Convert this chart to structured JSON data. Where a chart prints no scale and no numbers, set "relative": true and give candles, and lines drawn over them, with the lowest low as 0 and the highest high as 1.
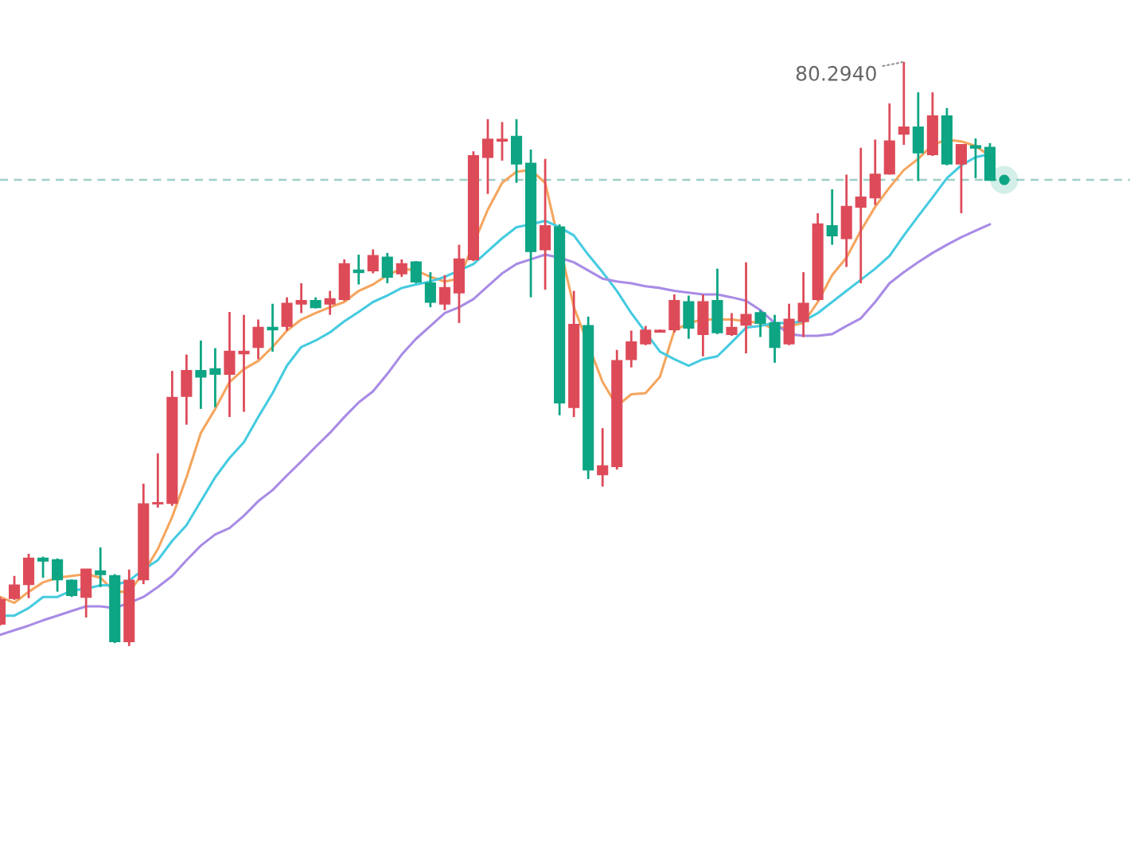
{
  "chart_data": {
    "type": "candlestick",
    "relative": true,
    "categories": [
      null,
      null,
      null,
      null,
      null,
      null,
      null,
      null,
      null,
      null,
      null,
      null,
      null,
      null,
      null,
      null,
      null,
      null,
      null,
      null,
      null,
      null,
      null,
      null,
      null,
      null,
      null,
      null,
      null,
      null,
      null,
      null,
      null,
      null,
      null,
      null,
      null,
      null,
      null,
      null,
      null,
      null,
      null,
      null,
      null,
      null,
      null,
      null,
      null,
      null,
      null,
      null,
      null,
      null,
      null,
      null,
      null,
      null,
      null,
      null,
      null,
      null,
      null,
      null,
      null,
      null,
      null,
      null,
      null,
      null
    ],
    "ohlc": [
      [
        0.038,
        0.084,
        0.035,
        0.079
      ],
      [
        0.082,
        0.12,
        0.079,
        0.104
      ],
      [
        0.106,
        0.158,
        0.082,
        0.15
      ],
      [
        0.15,
        0.153,
        0.117,
        0.146
      ],
      [
        0.147,
        0.15,
        0.093,
        0.114
      ],
      [
        0.112,
        0.114,
        0.084,
        0.087
      ],
      [
        0.084,
        0.131,
        0.049,
        0.131
      ],
      [
        0.128,
        0.169,
        0.101,
        0.123
      ],
      [
        0.12,
        0.123,
        0.005,
        0.008
      ],
      [
        0.008,
        0.131,
        0.0,
        0.112
      ],
      [
        0.114,
        0.278,
        0.106,
        0.243
      ],
      [
        0.244,
        0.33,
        0.237,
        0.245
      ],
      [
        0.245,
        0.471,
        0.24,
        0.425
      ],
      [
        0.428,
        0.499,
        0.379,
        0.471
      ],
      [
        0.471,
        0.523,
        0.406,
        0.461
      ],
      [
        0.474,
        0.51,
        0.409,
        0.466
      ],
      [
        0.466,
        0.572,
        0.392,
        0.504
      ],
      [
        0.501,
        0.567,
        0.401,
        0.504
      ],
      [
        0.512,
        0.559,
        0.491,
        0.545
      ],
      [
        0.545,
        0.586,
        0.504,
        0.542
      ],
      [
        0.548,
        0.597,
        0.54,
        0.586
      ],
      [
        0.586,
        0.621,
        0.57,
        0.591
      ],
      [
        0.591,
        0.597,
        0.578,
        0.58
      ],
      [
        0.586,
        0.608,
        0.567,
        0.594
      ],
      [
        0.594,
        0.662,
        0.591,
        0.654
      ],
      [
        0.643,
        0.67,
        0.619,
        0.64
      ],
      [
        0.643,
        0.679,
        0.638,
        0.668
      ],
      [
        0.665,
        0.673,
        0.621,
        0.632
      ],
      [
        0.638,
        0.662,
        0.632,
        0.654
      ],
      [
        0.657,
        0.659,
        0.621,
        0.624
      ],
      [
        0.621,
        0.64,
        0.58,
        0.589
      ],
      [
        0.586,
        0.635,
        0.575,
        0.613
      ],
      [
        0.605,
        0.687,
        0.553,
        0.662
      ],
      [
        0.662,
        0.847,
        0.659,
        0.839
      ],
      [
        0.837,
        0.902,
        0.774,
        0.867
      ],
      [
        0.865,
        0.897,
        0.831,
        0.867
      ],
      [
        0.872,
        0.902,
        0.793,
        0.826
      ],
      [
        0.826,
        0.85,
        0.597,
        0.676
      ],
      [
        0.679,
        0.834,
        0.61,
        0.719
      ],
      [
        0.717,
        0.722,
        0.395,
        0.417
      ],
      [
        0.409,
        0.608,
        0.392,
        0.55
      ],
      [
        0.548,
        0.564,
        0.286,
        0.302
      ],
      [
        0.294,
        0.373,
        0.273,
        0.308
      ],
      [
        0.308,
        0.507,
        0.302,
        0.488
      ],
      [
        0.491,
        0.54,
        0.477,
        0.52
      ],
      [
        0.518,
        0.548,
        0.515,
        0.54
      ],
      [
        0.538,
        0.542,
        0.537,
        0.54
      ],
      [
        0.542,
        0.602,
        0.537,
        0.591
      ],
      [
        0.589,
        0.6,
        0.526,
        0.545
      ],
      [
        0.534,
        0.602,
        0.496,
        0.589
      ],
      [
        0.591,
        0.646,
        0.534,
        0.537
      ],
      [
        0.534,
        0.57,
        0.531,
        0.545
      ],
      [
        0.55,
        0.657,
        0.501,
        0.567
      ],
      [
        0.57,
        0.575,
        0.529,
        0.553
      ],
      [
        0.553,
        0.567,
        0.485,
        0.512
      ],
      [
        0.518,
        0.586,
        0.515,
        0.559
      ],
      [
        0.556,
        0.64,
        0.529,
        0.586
      ],
      [
        0.594,
        0.741,
        0.591,
        0.722
      ],
      [
        0.719,
        0.782,
        0.687,
        0.703
      ],
      [
        0.698,
        0.807,
        0.649,
        0.752
      ],
      [
        0.752,
        0.853,
        0.621,
        0.768
      ],
      [
        0.768,
        0.867,
        0.755,
        0.807
      ],
      [
        0.809,
        0.929,
        0.807,
        0.864
      ],
      [
        0.877,
        1.0,
        0.858,
        0.888
      ],
      [
        0.888,
        0.948,
        0.796,
        0.845
      ],
      [
        0.842,
        0.948,
        0.839,
        0.907
      ],
      [
        0.907,
        0.921,
        0.823,
        0.826
      ],
      [
        0.826,
        0.858,
        0.741,
        0.858
      ],
      [
        0.856,
        0.869,
        0.801,
        0.853
      ],
      [
        0.853,
        0.861,
        0.798,
        0.798
      ]
    ],
    "colors": [
      "#dd4b59",
      "#dd4b59",
      "#dd4b59",
      "#0ea584",
      "#0ea584",
      "#0ea584",
      "#dd4b59",
      "#0ea584",
      "#0ea584",
      "#dd4b59",
      "#dd4b59",
      "#dd4b59",
      "#dd4b59",
      "#dd4b59",
      "#0ea584",
      "#0ea584",
      "#dd4b59",
      "#dd4b59",
      "#dd4b59",
      "#0ea584",
      "#dd4b59",
      "#dd4b59",
      "#0ea584",
      "#dd4b59",
      "#dd4b59",
      "#0ea584",
      "#dd4b59",
      "#0ea584",
      "#dd4b59",
      "#0ea584",
      "#0ea584",
      "#dd4b59",
      "#dd4b59",
      "#dd4b59",
      "#dd4b59",
      "#dd4b59",
      "#0ea584",
      "#0ea584",
      "#dd4b59",
      "#0ea584",
      "#dd4b59",
      "#0ea584",
      "#dd4b59",
      "#dd4b59",
      "#dd4b59",
      "#dd4b59",
      "#dd4b59",
      "#dd4b59",
      "#0ea584",
      "#dd4b59",
      "#0ea584",
      "#dd4b59",
      "#dd4b59",
      "#0ea584",
      "#0ea584",
      "#dd4b59",
      "#dd4b59",
      "#dd4b59",
      "#0ea584",
      "#dd4b59",
      "#dd4b59",
      "#dd4b59",
      "#dd4b59",
      "#dd4b59",
      "#0ea584",
      "#dd4b59",
      "#0ea584",
      "#dd4b59",
      "#0ea584",
      "#0ea584"
    ],
    "series": [
      {
        "type": "line",
        "color": "#f5a55e",
        "values": [
          0.084,
          0.074,
          0.093,
          0.109,
          0.117,
          0.12,
          0.123,
          0.117,
          0.093,
          0.093,
          0.125,
          0.166,
          0.221,
          0.289,
          0.365,
          0.406,
          0.452,
          0.474,
          0.488,
          0.512,
          0.54,
          0.559,
          0.57,
          0.58,
          0.589,
          0.608,
          0.619,
          0.635,
          0.646,
          0.643,
          0.632,
          0.624,
          0.629,
          null,
          0.747,
          0.793,
          0.812,
          0.815,
          0.793,
          null,
          0.58,
          null,
          0.452,
          0.411,
          0.431,
          0.433,
          0.461,
          0.54,
          0.553,
          0.559,
          0.559,
          0.559,
          0.556,
          0.553,
          0.542,
          0.548,
          0.553,
          0.589,
          0.635,
          0.665,
          0.711,
          0.752,
          0.785,
          0.815,
          0.834,
          0.858,
          0.867,
          0.864,
          0.856,
          0.839
        ]
      },
      {
        "type": "line",
        "color": "#45cbe0",
        "values": [
          0.052,
          0.052,
          0.065,
          0.084,
          0.084,
          0.095,
          0.098,
          0.104,
          0.104,
          0.112,
          0.131,
          0.147,
          0.18,
          0.207,
          0.248,
          0.289,
          0.322,
          0.349,
          0.392,
          0.433,
          0.48,
          0.512,
          0.523,
          0.537,
          0.556,
          0.572,
          0.589,
          0.6,
          0.613,
          0.619,
          0.624,
          0.632,
          0.643,
          0.654,
          0.676,
          0.698,
          0.717,
          0.722,
          0.728,
          0.717,
          0.703,
          0.67,
          0.64,
          0.608,
          0.57,
          0.537,
          0.504,
          0.491,
          0.48,
          0.491,
          0.496,
          0.52,
          0.545,
          0.548,
          0.553,
          0.553,
          0.556,
          0.57,
          0.589,
          0.608,
          0.627,
          0.646,
          0.668,
          0.703,
          0.736,
          0.768,
          0.801,
          0.823,
          0.837,
          0.842
        ]
      },
      {
        "type": "line",
        "color": "#a88be6",
        "values": [
          0.019,
          0.027,
          0.035,
          0.044,
          0.052,
          0.06,
          0.068,
          0.068,
          0.065,
          0.074,
          0.084,
          0.101,
          0.12,
          0.147,
          0.172,
          0.191,
          0.202,
          0.223,
          0.248,
          0.267,
          0.292,
          0.316,
          0.341,
          0.365,
          0.392,
          0.417,
          0.436,
          0.466,
          0.499,
          0.526,
          0.548,
          0.57,
          0.58,
          0.594,
          0.616,
          0.638,
          0.654,
          0.662,
          0.67,
          0.665,
          0.657,
          0.643,
          0.629,
          0.624,
          0.621,
          0.616,
          0.613,
          0.608,
          0.605,
          0.602,
          0.602,
          0.597,
          0.591,
          0.575,
          0.553,
          0.534,
          0.531,
          0.531,
          0.534,
          0.548,
          0.561,
          0.589,
          0.621,
          0.64,
          0.657,
          0.673,
          0.687,
          0.7,
          0.711,
          0.722
        ]
      }
    ],
    "annotations": [
      "80.2940"
    ],
    "ref_lines": [
      {
        "axis": "y",
        "value": 0.798,
        "color": "#9fcfc6",
        "line_style": "dashed"
      }
    ]
  }
}
